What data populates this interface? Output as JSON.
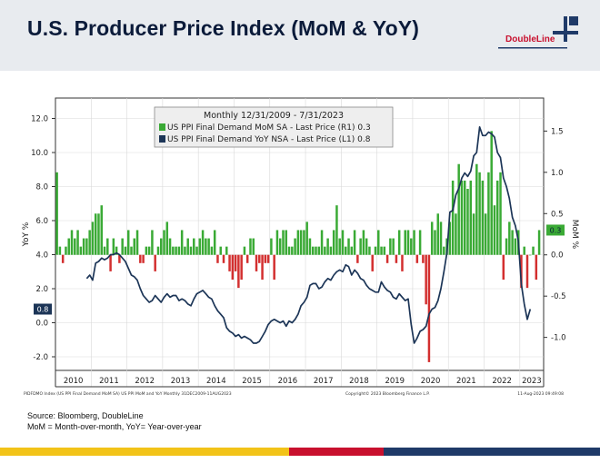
{
  "header": {
    "title": "U.S. Producer Price Index (MoM & YoY)",
    "logo_text": "DoubleLine"
  },
  "chart_data": {
    "type": "bar+line",
    "legend": {
      "title": "Monthly 12/31/2009 - 7/31/2023",
      "placement": "top-center",
      "entries": [
        {
          "label": "US PPI Final Demand MoM SA - Last Price (R1) 0.3",
          "color": "#3aaa35"
        },
        {
          "label": "US PPI Final Demand YoY NSA - Last Price (L1) 0.8",
          "color": "#1c3557"
        }
      ]
    },
    "left_axis": {
      "label": "YoY %",
      "ylim": [
        -2.8,
        13.2
      ],
      "ticks": [
        "12.0",
        "10.0",
        "8.0",
        "6.0",
        "4.0",
        "2.0",
        "0.0",
        "-2.0"
      ],
      "tick_values": [
        12,
        10,
        8,
        6,
        4,
        2,
        0,
        -2
      ]
    },
    "right_axis": {
      "label": "MoM %",
      "ylim": [
        -1.4,
        1.9
      ],
      "ticks": [
        "1.5",
        "1.0",
        "0.5",
        "0.0",
        "-0.5",
        "-1.0"
      ],
      "tick_values": [
        1.5,
        1.0,
        0.5,
        0.0,
        -0.5,
        -1.0
      ]
    },
    "x_years": [
      "2010",
      "2011",
      "2012",
      "2013",
      "2014",
      "2015",
      "2016",
      "2017",
      "2018",
      "2019",
      "2020",
      "2021",
      "2022",
      "2023"
    ],
    "last_values": {
      "left": "0.8",
      "right": "0.3"
    },
    "grid": true,
    "series": [
      {
        "name": "US PPI Final Demand MoM SA - Last Price (R1) 0.3",
        "type": "bar",
        "axis": "right",
        "start": "2010-01",
        "values": [
          1.0,
          0.1,
          -0.1,
          0.1,
          0.2,
          0.3,
          0.2,
          0.3,
          0.1,
          0.2,
          0.2,
          0.3,
          0.4,
          0.5,
          0.5,
          0.6,
          0.1,
          0.2,
          -0.2,
          0.2,
          0.1,
          -0.1,
          0.2,
          0.1,
          0.3,
          0.1,
          0.2,
          0.3,
          -0.1,
          -0.1,
          0.1,
          0.1,
          0.3,
          -0.2,
          0.1,
          0.2,
          0.3,
          0.4,
          0.2,
          0.1,
          0.1,
          0.1,
          0.3,
          0.1,
          0.2,
          0.1,
          0.2,
          0.1,
          0.2,
          0.3,
          0.2,
          0.2,
          0.1,
          0.3,
          -0.1,
          0.1,
          -0.1,
          0.1,
          -0.2,
          -0.3,
          -0.2,
          -0.4,
          -0.3,
          0.1,
          -0.1,
          0.2,
          0.2,
          -0.2,
          -0.1,
          -0.3,
          -0.1,
          -0.1,
          0.2,
          -0.3,
          0.3,
          0.2,
          0.3,
          0.3,
          0.1,
          0.1,
          0.2,
          0.3,
          0.3,
          0.3,
          0.4,
          0.2,
          0.1,
          0.1,
          0.1,
          0.3,
          0.1,
          0.2,
          0.1,
          0.3,
          0.6,
          0.2,
          0.3,
          0.1,
          0.2,
          0.1,
          0.3,
          -0.1,
          0.2,
          0.3,
          0.2,
          0.1,
          -0.2,
          0.1,
          0.3,
          0.1,
          0.1,
          -0.1,
          0.2,
          0.2,
          -0.1,
          0.3,
          -0.2,
          0.3,
          0.3,
          0.2,
          0.3,
          -0.1,
          0.3,
          -0.1,
          -0.6,
          -1.3,
          0.4,
          0.3,
          0.5,
          0.4,
          0.1,
          0.2,
          0.4,
          0.9,
          0.5,
          1.1,
          0.9,
          0.9,
          0.8,
          0.9,
          0.5,
          1.1,
          1.0,
          0.9,
          0.5,
          1.0,
          1.5,
          0.6,
          0.9,
          1.0,
          -0.3,
          0.2,
          0.4,
          0.3,
          0.2,
          0.3,
          -0.4,
          0.1,
          -0.4,
          0.0,
          0.1,
          -0.3,
          0.3
        ]
      },
      {
        "name": "US PPI Final Demand YoY NSA - Last Price (L1) 0.8",
        "type": "line",
        "axis": "left",
        "start": "2010-11",
        "values": [
          2.6,
          2.8,
          2.5,
          3.5,
          3.6,
          3.8,
          3.7,
          3.8,
          4.0,
          4.0,
          4.1,
          4.0,
          3.8,
          3.6,
          3.2,
          2.8,
          2.7,
          2.5,
          2.0,
          1.6,
          1.4,
          1.2,
          1.3,
          1.6,
          1.4,
          1.2,
          1.5,
          1.7,
          1.5,
          1.6,
          1.6,
          1.3,
          1.4,
          1.3,
          1.1,
          1.0,
          1.4,
          1.7,
          1.8,
          1.9,
          1.7,
          1.5,
          1.4,
          1.0,
          0.7,
          0.5,
          0.3,
          -0.3,
          -0.5,
          -0.6,
          -0.8,
          -0.7,
          -0.9,
          -0.8,
          -0.9,
          -1.0,
          -1.2,
          -1.2,
          -1.1,
          -0.8,
          -0.5,
          -0.1,
          0.1,
          0.2,
          0.1,
          0.0,
          0.1,
          -0.2,
          0.1,
          0.0,
          0.2,
          0.5,
          1.0,
          1.2,
          1.5,
          2.2,
          2.3,
          2.3,
          2.0,
          2.1,
          2.4,
          2.6,
          2.5,
          2.8,
          3.0,
          3.1,
          3.0,
          3.4,
          3.3,
          2.8,
          3.1,
          2.9,
          2.6,
          2.5,
          2.2,
          2.0,
          1.9,
          1.8,
          1.8,
          2.4,
          2.1,
          1.9,
          1.8,
          1.5,
          1.4,
          1.7,
          1.5,
          1.3,
          1.4,
          -0.1,
          -1.2,
          -0.9,
          -0.5,
          -0.4,
          -0.2,
          0.5,
          0.8,
          0.9,
          1.3,
          2.0,
          3.0,
          4.1,
          6.5,
          6.6,
          7.5,
          7.9,
          8.5,
          8.8,
          8.6,
          8.9,
          9.8,
          10.0,
          11.5,
          11.0,
          11.0,
          11.2,
          11.1,
          10.9,
          10.0,
          9.7,
          8.5,
          8.0,
          7.3,
          6.2,
          5.7,
          4.8,
          2.3,
          1.1,
          0.2,
          0.8
        ]
      }
    ]
  },
  "footer": {
    "chart_note_left": "PIDFDMO Index (US PPI Final Demand MoM SA) US PPI MoM and YoY  Monthly 31DEC2009-11AUG2023",
    "chart_note_center": "Copyright© 2023 Bloomberg Finance L.P.",
    "chart_note_right": "11-Aug-2023 09:49:08",
    "source": "Source: Bloomberg, DoubleLine",
    "definition": "MoM = Month-over-month, YoY= Year-over-year"
  },
  "colors": {
    "bar_positive": "#3aaa35",
    "bar_negative": "#d32f2f",
    "line": "#1c3557",
    "title": "#0b1b3a",
    "logo_red": "#c8102e",
    "stripe_yellow": "#f2c318",
    "stripe_red": "#c8102e",
    "stripe_navy": "#1f3a68"
  }
}
